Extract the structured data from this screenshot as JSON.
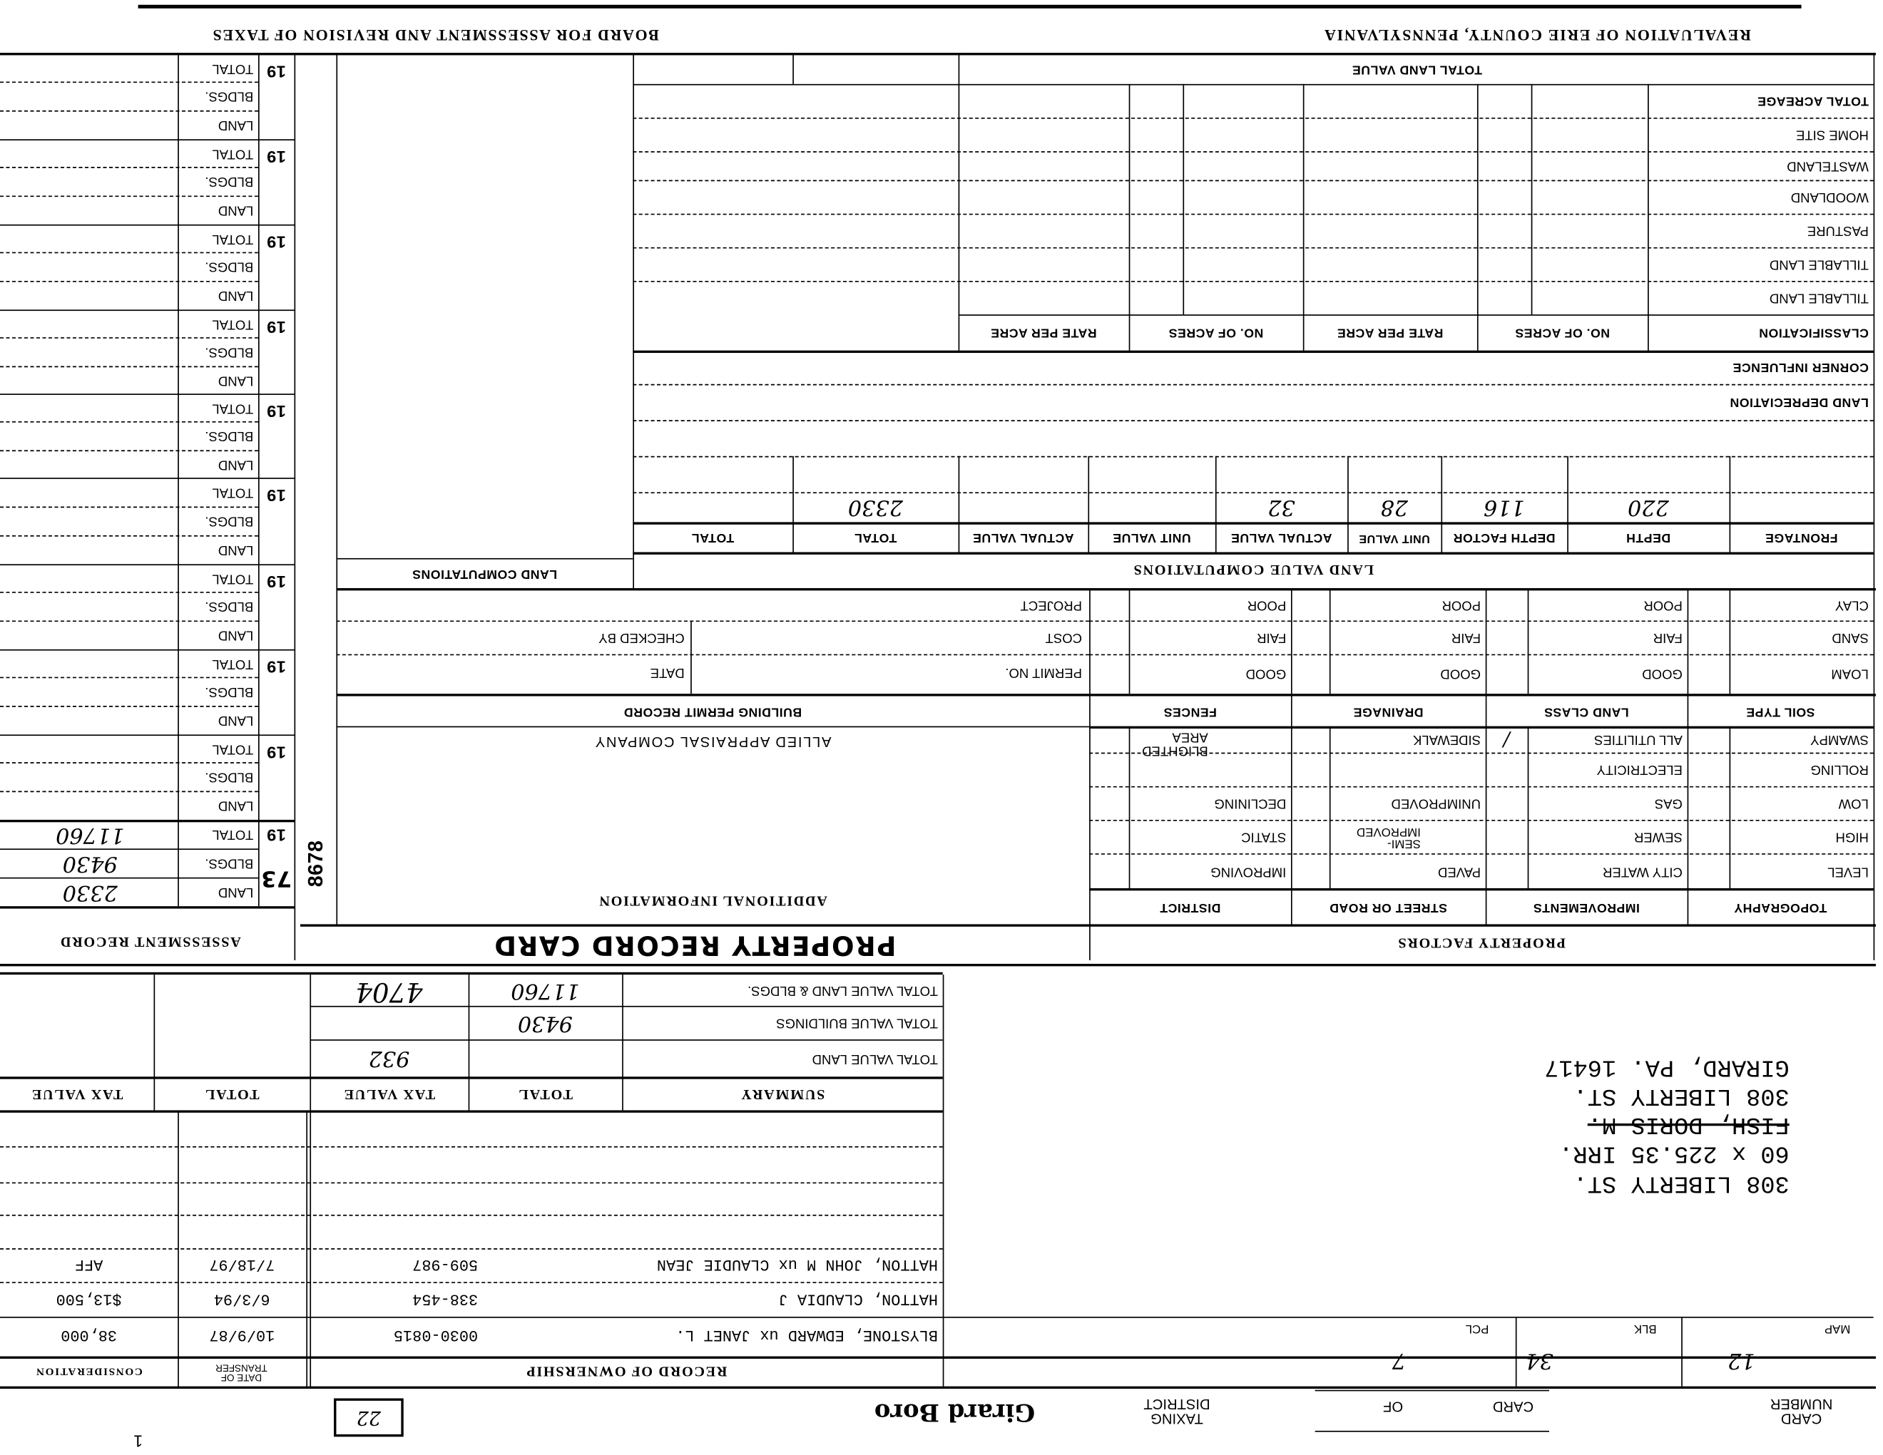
{
  "header": {
    "board": "BOARD FOR ASSESSMENT AND REVISION OF TAXES",
    "revaluation": "REVALUATION OF ERIE COUNTY, PENNSYLVANIA"
  },
  "assessment_record": {
    "title": "ASSESSMENT RECORD",
    "row_labels": {
      "total": "TOTAL",
      "bldgs": "BLDGS.",
      "land": "LAND"
    },
    "year_prefix": "19",
    "stamp_year": "73",
    "strip_number": "8678",
    "entries": [
      {
        "total": "11760",
        "bldgs": "9430",
        "land": "2330"
      }
    ]
  },
  "land_computations": {
    "title": "LAND COMPUTATIONS"
  },
  "land_table": {
    "total_land_value": "TOTAL LAND VALUE",
    "row_labels": [
      "TOTAL ACREAGE",
      "HOME SITE",
      "WASTELAND",
      "WOODLAND",
      "PASTURE",
      "TILLABLE LAND",
      "TILLABLE LAND"
    ],
    "classification": "CLASSIFICATION",
    "no_of_acres": "NO. OF ACRES",
    "rate_per_acre": "RATE PER ACRE",
    "corner_influence": "CORNER INFLUENCE",
    "land_depreciation": "LAND DEPRECIATION",
    "section_title": "LAND VALUE COMPUTATIONS",
    "columns": [
      "FRONTAGE",
      "DEPTH",
      "DEPTH FACTOR",
      "UNIT VALUE",
      "ACTUAL VALUE",
      "UNIT VALUE",
      "ACTUAL VALUE",
      "TOTAL",
      "TOTAL"
    ],
    "values": {
      "depth": "220",
      "depth_factor": "116",
      "unit_value": "28",
      "actual_value": "32",
      "total": "2330"
    }
  },
  "building_permit": {
    "title": "BUILDING PERMIT RECORD",
    "project": "PROJECT",
    "cost": "COST",
    "checked_by": "CHECKED BY",
    "permit_no": "PERMIT NO.",
    "date": "DATE"
  },
  "soil": {
    "headers": [
      "SOIL TYPE",
      "LAND CLASS",
      "DRAINAGE",
      "FENCES"
    ],
    "soil_types": [
      "LOAM",
      "SAND",
      "CLAY"
    ],
    "grades": [
      "GOOD",
      "FAIR",
      "POOR"
    ]
  },
  "factors": {
    "title": "PROPERTY FACTORS",
    "headers": [
      "TOPOGRAPHY",
      "IMPROVEMENTS",
      "STREET OR ROAD",
      "DISTRICT"
    ],
    "topography": [
      "LEVEL",
      "HIGH",
      "LOW",
      "ROLLING",
      "SWAMPY"
    ],
    "improvements": [
      "CITY WATER",
      "SEWER",
      "GAS",
      "ELECTRICITY",
      "ALL UTILITIES"
    ],
    "street": [
      "PAVED",
      "SEMI-IMPROVED",
      "UNIMPROVED",
      "SIDEWALK"
    ],
    "district": [
      "IMPROVING",
      "STATIC",
      "DECLINING",
      "BLIGHTED AREA"
    ],
    "check_mark": "/"
  },
  "additional": {
    "appraiser": "ALLIED APPRAISAL COMPANY",
    "title": "ADDITIONAL INFORMATION",
    "card_title": "PROPERTY RECORD CARD"
  },
  "summary": {
    "title": "SUMMARY",
    "col_total": "TOTAL",
    "col_tax_value": "TAX VALUE",
    "rows": [
      {
        "label": "TOTAL VALUE LAND",
        "total": "",
        "tax_value": "932"
      },
      {
        "label": "TOTAL VALUE BUILDINGS",
        "total": "9430",
        "tax_value": ""
      },
      {
        "label": "TOTAL VALUE LAND & BLDGS.",
        "total": "11760",
        "tax_value": "4704"
      }
    ]
  },
  "ownership": {
    "title": "RECORD OF OWNERSHIP",
    "date_header": "DATE OF TRANSFER",
    "consideration_header": "CONSIDERATION",
    "rows": [
      {
        "name": "BLYSTONE, EDWARD ux JANET L.",
        "deed": "0030-0815",
        "date": "10/9/87",
        "consideration": "38,000"
      },
      {
        "name": "HATTON, CLAUDIA J",
        "deed": "338-454",
        "date": "6/3/94",
        "consideration": "$13,500"
      },
      {
        "name": "HATTON, JOHN M ux CLAUDIE JEAN",
        "deed": "509-987",
        "date": "7/18/97",
        "consideration": "AFF"
      }
    ]
  },
  "property": {
    "lines": [
      "308 LIBERTY ST.",
      "60 x 225.35 IRR.",
      "FISH, DORIS M.",
      "308 LIBERTY ST.",
      "GIRARD, PA. 16417"
    ],
    "map_label": "MAP",
    "map": "12",
    "blk_label": "BLK",
    "blk": "34",
    "pcl_label": "PCL",
    "pcl": "7"
  },
  "footer": {
    "card_number": "CARD NUMBER",
    "card": "CARD",
    "of": "OF",
    "taxing_district_label": "TAXING DISTRICT",
    "taxing_district": "Girard Boro",
    "box_number": "22",
    "corner_mark": "1"
  }
}
